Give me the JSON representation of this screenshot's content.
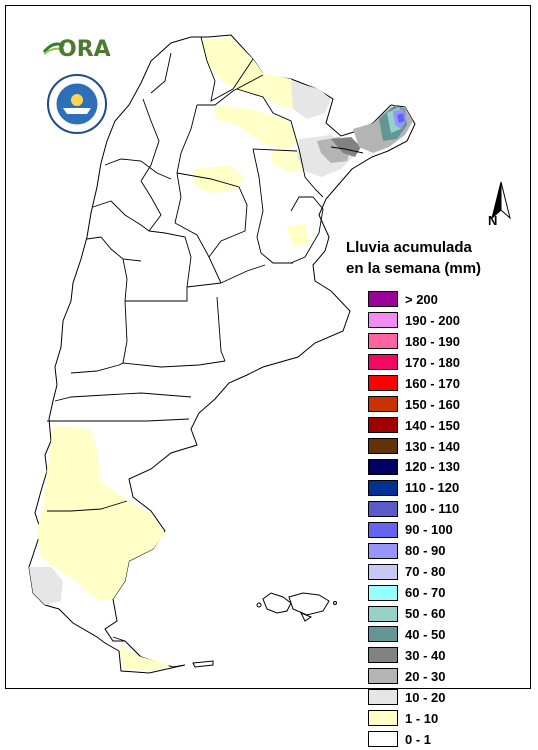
{
  "legend": {
    "title_line1": "Lluvia acumulada",
    "title_line2": "en la semana (mm)",
    "items": [
      {
        "label": "> 200",
        "color": "#9B009B"
      },
      {
        "label": "190 - 200",
        "color": "#F28CF2"
      },
      {
        "label": "180 - 190",
        "color": "#FF64A0"
      },
      {
        "label": "170 - 180",
        "color": "#F00A64"
      },
      {
        "label": "160 - 170",
        "color": "#FF0000"
      },
      {
        "label": "150 - 160",
        "color": "#C83200"
      },
      {
        "label": "140 - 150",
        "color": "#A00000"
      },
      {
        "label": "130 - 140",
        "color": "#64320A"
      },
      {
        "label": "120 - 130",
        "color": "#000064"
      },
      {
        "label": "110 - 120",
        "color": "#003296"
      },
      {
        "label": "100 - 110",
        "color": "#5A5AC8"
      },
      {
        "label": "90 - 100",
        "color": "#6464F0"
      },
      {
        "label": "80 - 90",
        "color": "#9696FF"
      },
      {
        "label": "70 - 80",
        "color": "#C8C8F5"
      },
      {
        "label": "60 - 70",
        "color": "#96FFFF"
      },
      {
        "label": "50 - 60",
        "color": "#96D2C8"
      },
      {
        "label": "40 - 50",
        "color": "#649696"
      },
      {
        "label": "30 - 40",
        "color": "#828282"
      },
      {
        "label": "20 - 30",
        "color": "#B4B4B4"
      },
      {
        "label": "10 - 20",
        "color": "#E6E6E6"
      },
      {
        "label": "1 - 10",
        "color": "#FFFFC8"
      },
      {
        "label": "0 - 1",
        "color": "#FFFFFF"
      }
    ]
  },
  "north_arrow": {
    "label": "N"
  },
  "logos": {
    "ora": "ORA",
    "smn_icon": "smn-seal-icon"
  },
  "colors": {
    "border": "#000000",
    "light_yellow": "#FFFFC8"
  }
}
